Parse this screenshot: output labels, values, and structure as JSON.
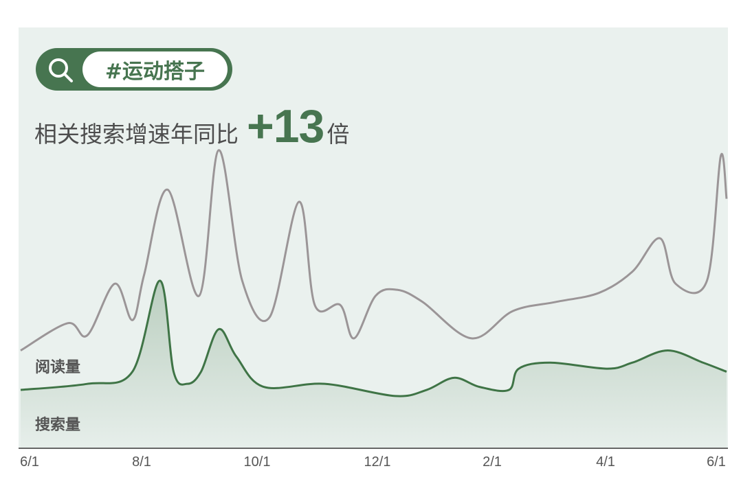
{
  "tag": {
    "icon": "search-icon",
    "text": "#运动搭子"
  },
  "headline": {
    "lead": "相关搜索增速年同比",
    "value": "+13",
    "unit": "倍"
  },
  "colors": {
    "accent": "#477550",
    "read_line": "#9b9597",
    "search_line": "#3f7446",
    "background": "#eaf1ee"
  },
  "chart_data": {
    "type": "line",
    "xlabel": "",
    "ylabel": "",
    "y_axis_shown": false,
    "grid": false,
    "x_tick_labels": [
      "6/1",
      "8/1",
      "10/1",
      "12/1",
      "2/1",
      "4/1",
      "6/1"
    ],
    "series": [
      {
        "name": "阅读量",
        "color": "#9b9597",
        "fill": false,
        "x": [
          "6/1",
          "6/25",
          "7/5",
          "7/19",
          "7/28",
          "8/4",
          "8/16",
          "9/2",
          "9/12",
          "9/24",
          "10/8",
          "10/23",
          "11/1",
          "11/14",
          "11/21",
          "12/2",
          "12/13",
          "12/26",
          "1/21",
          "2/12",
          "3/4",
          "3/26",
          "4/13",
          "4/27",
          "5/5",
          "5/21",
          "5/28",
          "6/1"
        ],
        "values": [
          32,
          41,
          37,
          54,
          42,
          57,
          85,
          50,
          98,
          55,
          43,
          81,
          47,
          47,
          36,
          50,
          52,
          48,
          36,
          45,
          48,
          51,
          58,
          69,
          54,
          55,
          96,
          82
        ]
      },
      {
        "name": "搜索量",
        "color": "#3f7446",
        "fill": true,
        "x": [
          "6/1",
          "7/5",
          "7/28",
          "8/12",
          "8/19",
          "8/26",
          "9/3",
          "9/12",
          "9/21",
          "10/5",
          "11/6",
          "12/12",
          "12/28",
          "1/12",
          "1/25",
          "2/10",
          "2/15",
          "3/1",
          "3/30",
          "4/13",
          "5/1",
          "5/19",
          "6/1"
        ],
        "values": [
          19,
          21,
          25,
          55,
          25,
          21,
          25,
          39,
          30,
          20,
          21,
          17,
          19,
          23,
          20,
          19,
          26,
          28,
          26,
          28,
          32,
          28,
          25
        ]
      }
    ]
  }
}
